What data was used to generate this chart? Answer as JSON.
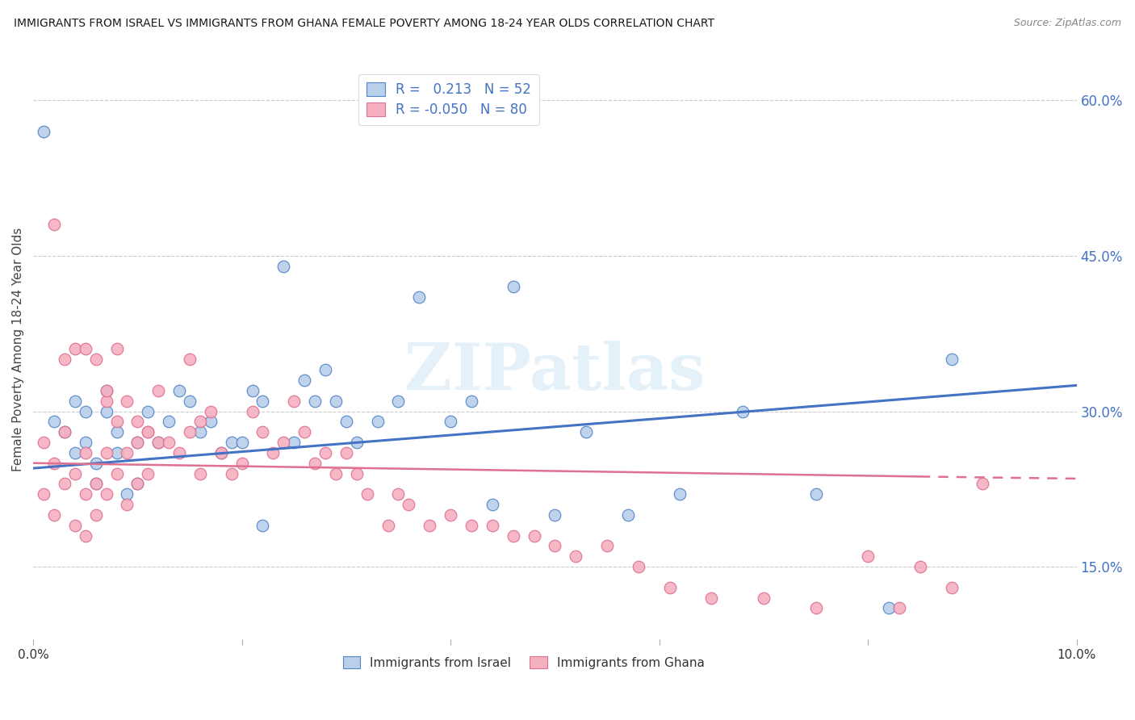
{
  "title": "IMMIGRANTS FROM ISRAEL VS IMMIGRANTS FROM GHANA FEMALE POVERTY AMONG 18-24 YEAR OLDS CORRELATION CHART",
  "source": "Source: ZipAtlas.com",
  "ylabel": "Female Poverty Among 18-24 Year Olds",
  "xlim": [
    0.0,
    0.1
  ],
  "ylim": [
    0.08,
    0.64
  ],
  "yticks_right": [
    0.15,
    0.3,
    0.45,
    0.6
  ],
  "yticks_right_labels": [
    "15.0%",
    "30.0%",
    "45.0%",
    "60.0%"
  ],
  "israel_color": "#b8d0ea",
  "ghana_color": "#f5b0c0",
  "israel_edge_color": "#5585c8",
  "ghana_edge_color": "#e07090",
  "israel_line_color": "#4472c4",
  "ghana_line_color": "#e07090",
  "label_color": "#4472c4",
  "israel_R": 0.213,
  "israel_N": 52,
  "ghana_R": -0.05,
  "ghana_N": 80,
  "watermark": "ZIPatlas",
  "background_color": "#ffffff",
  "grid_color": "#cccccc",
  "israel_trend_x0": 0.0,
  "israel_trend_y0": 0.245,
  "israel_trend_x1": 0.1,
  "israel_trend_y1": 0.325,
  "ghana_trend_x0": 0.0,
  "ghana_trend_y0": 0.25,
  "ghana_trend_x1": 0.085,
  "ghana_trend_y1": 0.237,
  "ghana_trend_dashed_x0": 0.085,
  "ghana_trend_dashed_y0": 0.237,
  "ghana_trend_dashed_x1": 0.1,
  "ghana_trend_dashed_y1": 0.235,
  "israel_scatter_x": [
    0.001,
    0.002,
    0.003,
    0.004,
    0.004,
    0.005,
    0.005,
    0.006,
    0.006,
    0.007,
    0.007,
    0.008,
    0.008,
    0.009,
    0.01,
    0.01,
    0.011,
    0.012,
    0.013,
    0.014,
    0.015,
    0.016,
    0.017,
    0.018,
    0.019,
    0.02,
    0.021,
    0.022,
    0.024,
    0.025,
    0.026,
    0.027,
    0.028,
    0.029,
    0.03,
    0.031,
    0.033,
    0.035,
    0.037,
    0.04,
    0.042,
    0.044,
    0.046,
    0.05,
    0.053,
    0.057,
    0.062,
    0.068,
    0.075,
    0.082,
    0.088,
    0.022
  ],
  "israel_scatter_y": [
    0.57,
    0.29,
    0.28,
    0.26,
    0.31,
    0.3,
    0.27,
    0.25,
    0.23,
    0.32,
    0.3,
    0.28,
    0.26,
    0.22,
    0.23,
    0.27,
    0.3,
    0.27,
    0.29,
    0.32,
    0.31,
    0.28,
    0.29,
    0.26,
    0.27,
    0.27,
    0.32,
    0.31,
    0.44,
    0.27,
    0.33,
    0.31,
    0.34,
    0.31,
    0.29,
    0.27,
    0.29,
    0.31,
    0.41,
    0.29,
    0.31,
    0.21,
    0.42,
    0.2,
    0.28,
    0.2,
    0.22,
    0.3,
    0.22,
    0.11,
    0.35,
    0.19
  ],
  "ghana_scatter_x": [
    0.001,
    0.001,
    0.002,
    0.002,
    0.003,
    0.003,
    0.004,
    0.004,
    0.005,
    0.005,
    0.005,
    0.006,
    0.006,
    0.007,
    0.007,
    0.007,
    0.008,
    0.008,
    0.009,
    0.009,
    0.01,
    0.01,
    0.011,
    0.011,
    0.012,
    0.012,
    0.013,
    0.014,
    0.015,
    0.015,
    0.016,
    0.016,
    0.017,
    0.018,
    0.019,
    0.02,
    0.021,
    0.022,
    0.023,
    0.024,
    0.025,
    0.026,
    0.027,
    0.028,
    0.029,
    0.03,
    0.031,
    0.032,
    0.034,
    0.035,
    0.036,
    0.038,
    0.04,
    0.042,
    0.044,
    0.046,
    0.048,
    0.05,
    0.052,
    0.055,
    0.058,
    0.061,
    0.065,
    0.07,
    0.075,
    0.08,
    0.083,
    0.085,
    0.088,
    0.091,
    0.002,
    0.003,
    0.004,
    0.005,
    0.006,
    0.007,
    0.008,
    0.009,
    0.01,
    0.011
  ],
  "ghana_scatter_y": [
    0.27,
    0.22,
    0.25,
    0.2,
    0.28,
    0.23,
    0.24,
    0.19,
    0.26,
    0.22,
    0.18,
    0.23,
    0.2,
    0.31,
    0.26,
    0.22,
    0.29,
    0.24,
    0.26,
    0.21,
    0.27,
    0.23,
    0.28,
    0.24,
    0.32,
    0.27,
    0.27,
    0.26,
    0.35,
    0.28,
    0.29,
    0.24,
    0.3,
    0.26,
    0.24,
    0.25,
    0.3,
    0.28,
    0.26,
    0.27,
    0.31,
    0.28,
    0.25,
    0.26,
    0.24,
    0.26,
    0.24,
    0.22,
    0.19,
    0.22,
    0.21,
    0.19,
    0.2,
    0.19,
    0.19,
    0.18,
    0.18,
    0.17,
    0.16,
    0.17,
    0.15,
    0.13,
    0.12,
    0.12,
    0.11,
    0.16,
    0.11,
    0.15,
    0.13,
    0.23,
    0.48,
    0.35,
    0.36,
    0.36,
    0.35,
    0.32,
    0.36,
    0.31,
    0.29,
    0.28
  ]
}
